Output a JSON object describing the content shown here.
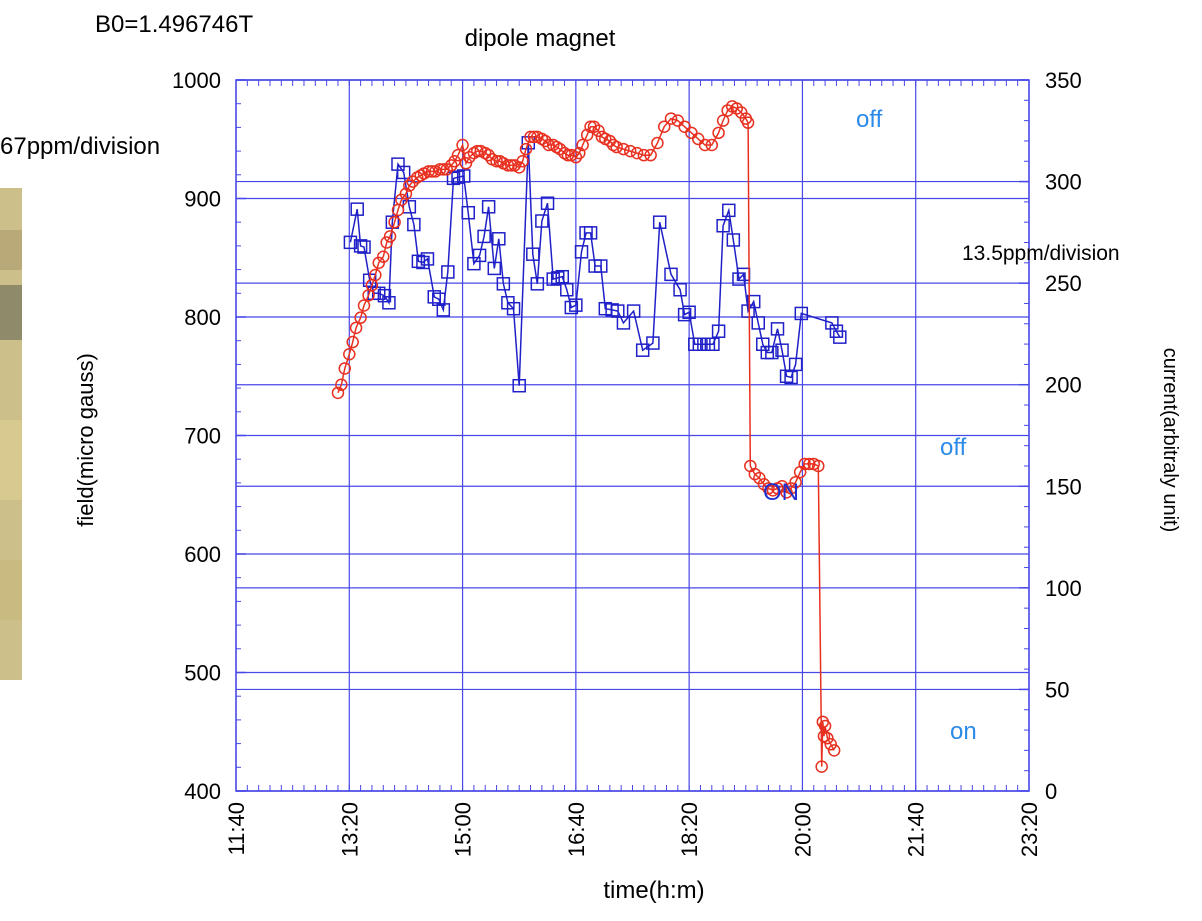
{
  "header": {
    "b0": "B0=1.496746T",
    "ppm_left": "67ppm/division",
    "ppm_right": "13.5ppm/division"
  },
  "annotations": {
    "off_top": "off",
    "off_mid": "off",
    "on_blue": "ON",
    "on_low": "on"
  },
  "colors": {
    "grid": "#4848e8",
    "field": "#2020c8",
    "current": "#e83020",
    "annot_light": "#2c8ae8",
    "annot_dark": "#2030d0",
    "photo": "#cdbf8a"
  },
  "chart_data": {
    "type": "line",
    "title": "dipole magnet",
    "xlabel": "time(h:m)",
    "ylabel": "field(micro gauss)",
    "y2label": "current(arbitraly unit)",
    "xlim": [
      "11:40",
      "23:20"
    ],
    "ylim": [
      400,
      1000
    ],
    "y2lim": [
      0,
      350
    ],
    "xticks": [
      "11:40",
      "13:20",
      "15:00",
      "16:40",
      "18:20",
      "20:00",
      "21:40",
      "23:20"
    ],
    "yticks": [
      400,
      500,
      600,
      700,
      800,
      900,
      1000
    ],
    "y2ticks": [
      0,
      50,
      100,
      150,
      200,
      250,
      300,
      350
    ],
    "grid": true,
    "series": [
      {
        "axis": "left",
        "marker": "square",
        "color": "#2020c8",
        "points": [
          [
            "13:21",
            863
          ],
          [
            "13:27",
            891
          ],
          [
            "13:30",
            860
          ],
          [
            "13:33",
            859
          ],
          [
            "13:38",
            831
          ],
          [
            "13:42",
            820
          ],
          [
            "13:46",
            820
          ],
          [
            "13:51",
            818
          ],
          [
            "13:55",
            812
          ],
          [
            "13:58",
            880
          ],
          [
            "14:03",
            929
          ],
          [
            "14:08",
            922
          ],
          [
            "14:13",
            893
          ],
          [
            "14:17",
            878
          ],
          [
            "14:21",
            847
          ],
          [
            "14:25",
            846
          ],
          [
            "14:29",
            849
          ],
          [
            "14:35",
            817
          ],
          [
            "14:39",
            815
          ],
          [
            "14:43",
            806
          ],
          [
            "14:47",
            838
          ],
          [
            "14:52",
            917
          ],
          [
            "14:56",
            918
          ],
          [
            "15:01",
            919
          ],
          [
            "15:05",
            888
          ],
          [
            "15:10",
            845
          ],
          [
            "15:15",
            852
          ],
          [
            "15:19",
            868
          ],
          [
            "15:23",
            893
          ],
          [
            "15:28",
            841
          ],
          [
            "15:32",
            866
          ],
          [
            "15:36",
            828
          ],
          [
            "15:40",
            812
          ],
          [
            "15:45",
            807
          ],
          [
            "15:50",
            742
          ],
          [
            "15:58",
            947
          ],
          [
            "16:02",
            853
          ],
          [
            "16:06",
            828
          ],
          [
            "16:10",
            881
          ],
          [
            "16:15",
            896
          ],
          [
            "16:20",
            832
          ],
          [
            "16:24",
            833
          ],
          [
            "16:28",
            834
          ],
          [
            "16:32",
            823
          ],
          [
            "16:36",
            808
          ],
          [
            "16:40",
            810
          ],
          [
            "16:45",
            855
          ],
          [
            "16:49",
            871
          ],
          [
            "16:53",
            871
          ],
          [
            "16:57",
            843
          ],
          [
            "17:02",
            843
          ],
          [
            "17:06",
            807
          ],
          [
            "17:12",
            806
          ],
          [
            "17:17",
            805
          ],
          [
            "17:22",
            795
          ],
          [
            "17:31",
            805
          ],
          [
            "17:39",
            772
          ],
          [
            "17:48",
            778
          ],
          [
            "17:54",
            880
          ],
          [
            "18:04",
            836
          ],
          [
            "18:12",
            823
          ],
          [
            "18:16",
            802
          ],
          [
            "18:20",
            804
          ],
          [
            "18:25",
            777
          ],
          [
            "18:29",
            777
          ],
          [
            "18:33",
            777
          ],
          [
            "18:37",
            777
          ],
          [
            "18:41",
            777
          ],
          [
            "18:46",
            788
          ],
          [
            "18:50",
            877
          ],
          [
            "18:55",
            890
          ],
          [
            "18:59",
            865
          ],
          [
            "19:04",
            832
          ],
          [
            "19:08",
            836
          ],
          [
            "19:12",
            805
          ],
          [
            "19:17",
            813
          ],
          [
            "19:21",
            795
          ],
          [
            "19:25",
            777
          ],
          [
            "19:29",
            770
          ],
          [
            "19:33",
            770
          ],
          [
            "19:38",
            790
          ],
          [
            "19:42",
            772
          ],
          [
            "19:46",
            750
          ],
          [
            "19:50",
            749
          ],
          [
            "19:54",
            760
          ],
          [
            "19:59",
            803
          ],
          [
            "20:26",
            795
          ],
          [
            "20:30",
            788
          ],
          [
            "20:33",
            783
          ]
        ]
      },
      {
        "axis": "right",
        "marker": "circle",
        "color": "#e83020",
        "points": [
          [
            "13:10",
            196
          ],
          [
            "13:13",
            200
          ],
          [
            "13:16",
            208
          ],
          [
            "13:20",
            215
          ],
          [
            "13:23",
            221
          ],
          [
            "13:26",
            228
          ],
          [
            "13:30",
            233
          ],
          [
            "13:33",
            239
          ],
          [
            "13:37",
            244
          ],
          [
            "13:40",
            249
          ],
          [
            "13:43",
            254
          ],
          [
            "13:46",
            260
          ],
          [
            "13:50",
            263
          ],
          [
            "13:53",
            270
          ],
          [
            "13:56",
            273
          ],
          [
            "14:00",
            280
          ],
          [
            "14:03",
            286
          ],
          [
            "14:06",
            291
          ],
          [
            "14:10",
            294
          ],
          [
            "14:13",
            298
          ],
          [
            "14:16",
            300
          ],
          [
            "14:20",
            302
          ],
          [
            "14:23",
            303
          ],
          [
            "14:26",
            304
          ],
          [
            "14:30",
            305
          ],
          [
            "14:33",
            305
          ],
          [
            "14:36",
            305
          ],
          [
            "14:40",
            306
          ],
          [
            "14:43",
            306
          ],
          [
            "14:46",
            306
          ],
          [
            "14:50",
            308
          ],
          [
            "14:53",
            310
          ],
          [
            "14:56",
            313
          ],
          [
            "15:00",
            318
          ],
          [
            "15:03",
            309
          ],
          [
            "15:06",
            312
          ],
          [
            "15:10",
            314
          ],
          [
            "15:13",
            315
          ],
          [
            "15:16",
            315
          ],
          [
            "15:20",
            314
          ],
          [
            "15:23",
            313
          ],
          [
            "15:26",
            311
          ],
          [
            "15:30",
            310
          ],
          [
            "15:33",
            310
          ],
          [
            "15:36",
            309
          ],
          [
            "15:40",
            308
          ],
          [
            "15:43",
            308
          ],
          [
            "15:46",
            308
          ],
          [
            "15:50",
            307
          ],
          [
            "15:53",
            310
          ],
          [
            "15:56",
            316
          ],
          [
            "16:00",
            322
          ],
          [
            "16:03",
            322
          ],
          [
            "16:06",
            322
          ],
          [
            "16:10",
            321
          ],
          [
            "16:13",
            320
          ],
          [
            "16:16",
            318
          ],
          [
            "16:20",
            318
          ],
          [
            "16:23",
            317
          ],
          [
            "16:26",
            316
          ],
          [
            "16:30",
            314
          ],
          [
            "16:33",
            313
          ],
          [
            "16:36",
            313
          ],
          [
            "16:40",
            312
          ],
          [
            "16:43",
            314
          ],
          [
            "16:46",
            318
          ],
          [
            "16:50",
            323
          ],
          [
            "16:53",
            327
          ],
          [
            "16:56",
            327
          ],
          [
            "17:00",
            325
          ],
          [
            "17:03",
            322
          ],
          [
            "17:06",
            321
          ],
          [
            "17:10",
            320
          ],
          [
            "17:13",
            318
          ],
          [
            "17:16",
            317
          ],
          [
            "17:22",
            316
          ],
          [
            "17:28",
            315
          ],
          [
            "17:34",
            314
          ],
          [
            "17:40",
            313
          ],
          [
            "17:46",
            313
          ],
          [
            "17:52",
            319
          ],
          [
            "17:58",
            327
          ],
          [
            "18:04",
            331
          ],
          [
            "18:10",
            330
          ],
          [
            "18:16",
            327
          ],
          [
            "18:22",
            324
          ],
          [
            "18:28",
            321
          ],
          [
            "18:34",
            318
          ],
          [
            "18:40",
            318
          ],
          [
            "18:46",
            324
          ],
          [
            "18:50",
            330
          ],
          [
            "18:54",
            335
          ],
          [
            "18:58",
            337
          ],
          [
            "19:02",
            336
          ],
          [
            "19:06",
            334
          ],
          [
            "19:10",
            331
          ],
          [
            "19:12",
            329
          ],
          [
            "19:14",
            160
          ],
          [
            "19:18",
            156
          ],
          [
            "19:22",
            154
          ],
          [
            "19:26",
            151
          ],
          [
            "19:30",
            149
          ],
          [
            "19:34",
            148
          ],
          [
            "19:38",
            149
          ],
          [
            "19:42",
            150
          ],
          [
            "19:46",
            147
          ],
          [
            "19:50",
            149
          ],
          [
            "19:54",
            152
          ],
          [
            "19:58",
            157
          ],
          [
            "20:02",
            161
          ],
          [
            "20:06",
            161
          ],
          [
            "20:10",
            161
          ],
          [
            "20:14",
            160
          ],
          [
            "20:17",
            12
          ],
          [
            "20:18",
            34
          ],
          [
            "20:19",
            27
          ],
          [
            "20:20",
            32
          ],
          [
            "20:22",
            26
          ],
          [
            "20:25",
            23
          ],
          [
            "20:28",
            20
          ]
        ]
      }
    ]
  }
}
